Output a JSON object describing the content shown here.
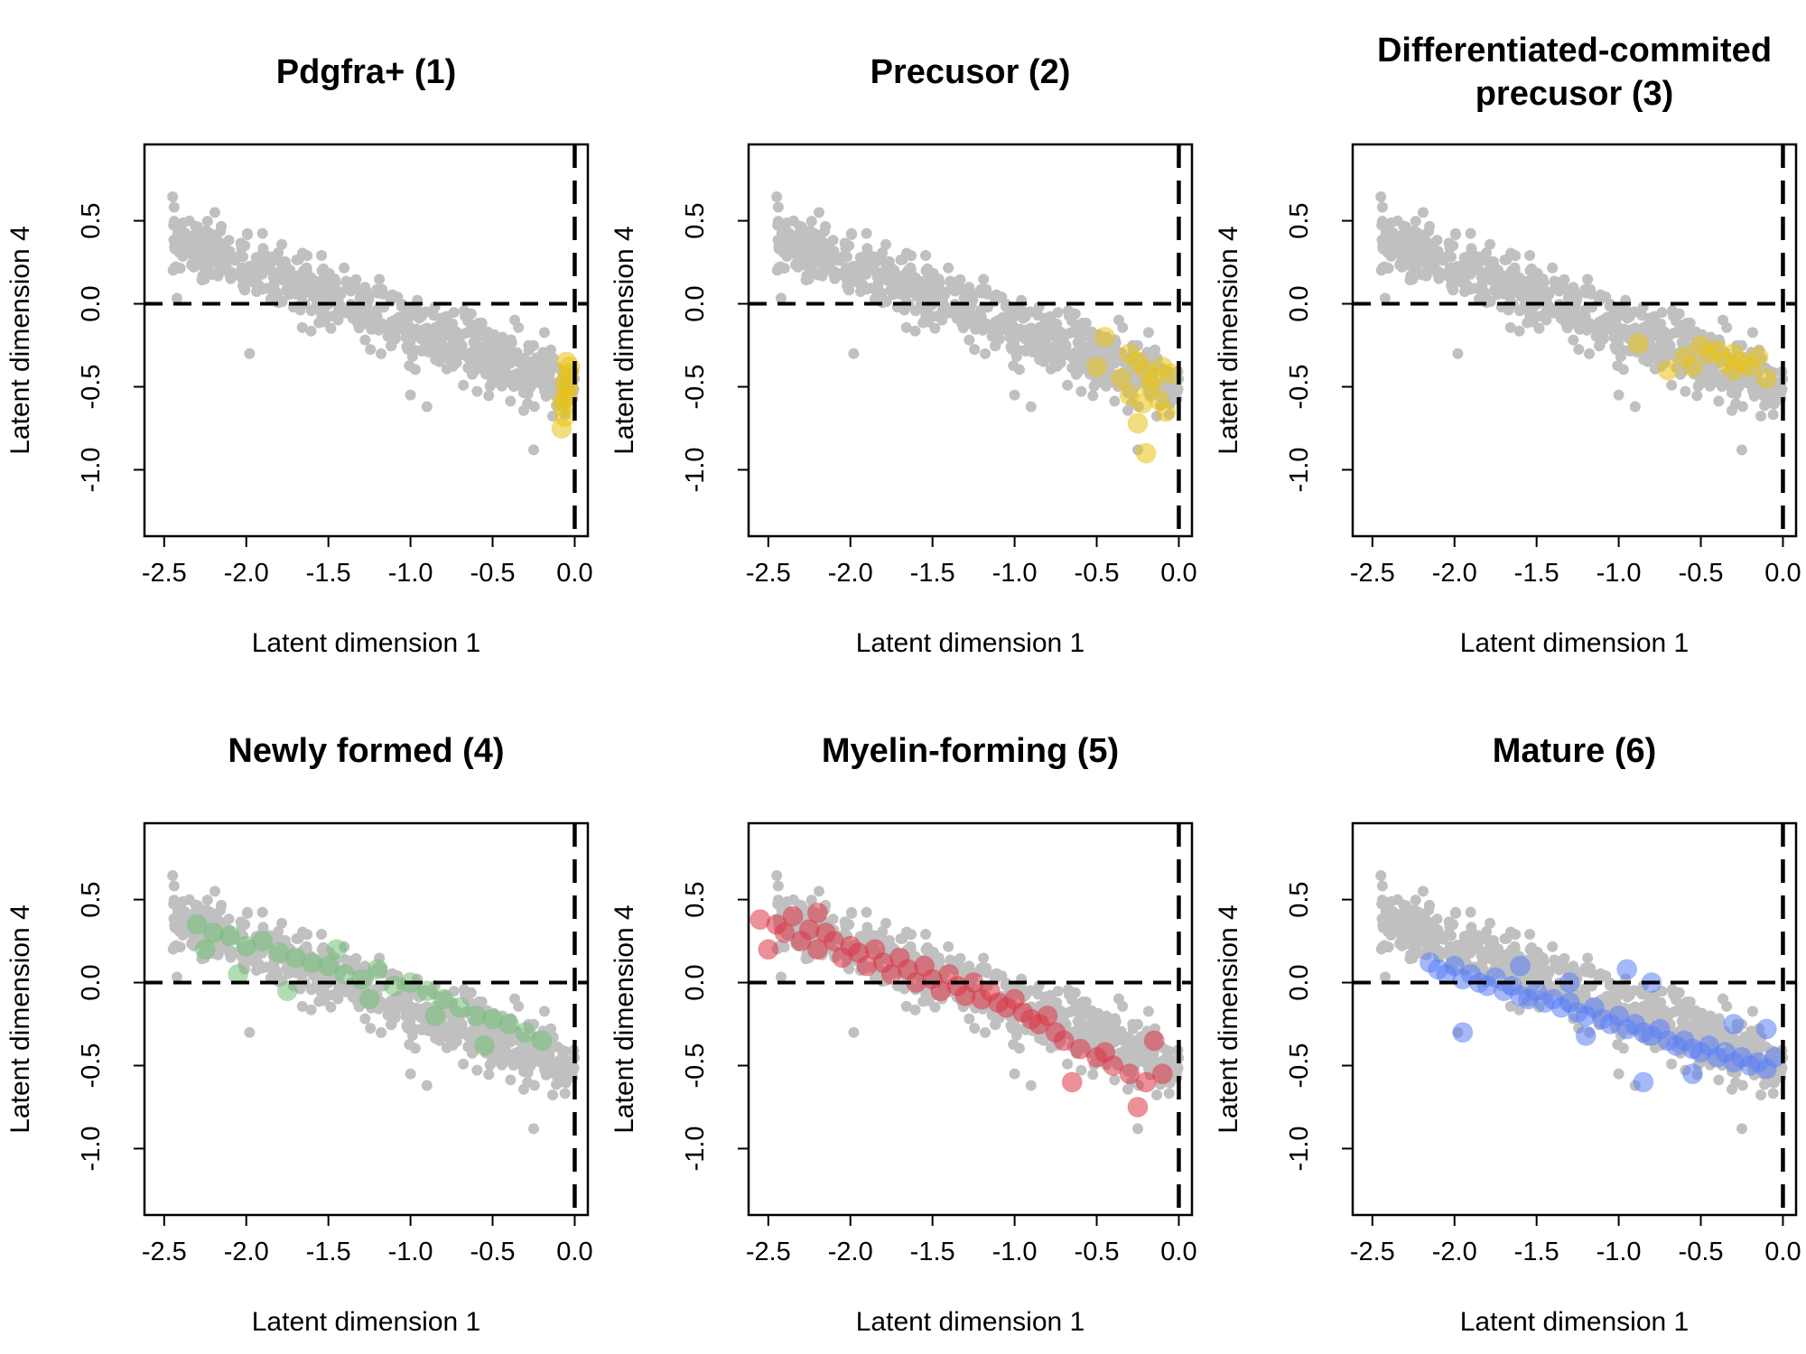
{
  "figure": {
    "colors": {
      "background_points": "#c0c0c0",
      "reference_lines": "#000000"
    },
    "reference_lines": {
      "x": 0.0,
      "y": 0.0,
      "style": "dashed"
    }
  },
  "chart_data": [
    {
      "type": "scatter",
      "title": [
        "Pdgfra+ (1)"
      ],
      "xlabel": "Latent dimension 1",
      "ylabel": "Latent dimension 4",
      "xlim": [
        -2.62,
        0.08
      ],
      "ylim": [
        -1.4,
        0.96
      ],
      "xticks": [
        "-2.5",
        "-2.0",
        "-1.5",
        "-1.0",
        "-0.5",
        "0.0"
      ],
      "yticks": [
        "-1.0",
        "-0.5",
        "0.0",
        "0.5"
      ],
      "highlight_color": "#e8c215",
      "highlight_points": [
        [
          -0.05,
          -0.35
        ],
        [
          -0.04,
          -0.42
        ],
        [
          -0.06,
          -0.48
        ],
        [
          -0.05,
          -0.55
        ],
        [
          -0.07,
          -0.62
        ],
        [
          -0.06,
          -0.68
        ],
        [
          -0.08,
          -0.75
        ],
        [
          -0.04,
          -0.5
        ],
        [
          -0.03,
          -0.38
        ],
        [
          -0.07,
          -0.58
        ]
      ]
    },
    {
      "type": "scatter",
      "title": [
        "Precusor (2)"
      ],
      "xlabel": "Latent dimension 1",
      "ylabel": "Latent dimension 4",
      "xlim": [
        -2.62,
        0.08
      ],
      "ylim": [
        -1.4,
        0.96
      ],
      "xticks": [
        "-2.5",
        "-2.0",
        "-1.5",
        "-1.0",
        "-0.5",
        "0.0"
      ],
      "yticks": [
        "-1.0",
        "-0.5",
        "0.0",
        "0.5"
      ],
      "highlight_color": "#e8c215",
      "highlight_points": [
        [
          -0.45,
          -0.2
        ],
        [
          -0.5,
          -0.38
        ],
        [
          -0.3,
          -0.3
        ],
        [
          -0.25,
          -0.35
        ],
        [
          -0.2,
          -0.4
        ],
        [
          -0.15,
          -0.45
        ],
        [
          -0.1,
          -0.38
        ],
        [
          -0.05,
          -0.42
        ],
        [
          -0.18,
          -0.5
        ],
        [
          -0.22,
          -0.6
        ],
        [
          -0.3,
          -0.55
        ],
        [
          -0.12,
          -0.58
        ],
        [
          -0.25,
          -0.72
        ],
        [
          -0.2,
          -0.9
        ],
        [
          -0.08,
          -0.65
        ],
        [
          -0.35,
          -0.45
        ]
      ]
    },
    {
      "type": "scatter",
      "title": [
        "Differentiated-commited",
        "precusor (3)"
      ],
      "xlabel": "Latent dimension 1",
      "ylabel": "Latent dimension 4",
      "xlim": [
        -2.62,
        0.08
      ],
      "ylim": [
        -1.4,
        0.96
      ],
      "xticks": [
        "-2.5",
        "-2.0",
        "-1.5",
        "-1.0",
        "-0.5",
        "0.0"
      ],
      "yticks": [
        "-1.0",
        "-0.5",
        "0.0",
        "0.5"
      ],
      "highlight_color": "#e8c215",
      "highlight_points": [
        [
          -0.88,
          -0.24
        ],
        [
          -0.7,
          -0.4
        ],
        [
          -0.6,
          -0.32
        ],
        [
          -0.5,
          -0.25
        ],
        [
          -0.45,
          -0.3
        ],
        [
          -0.4,
          -0.28
        ],
        [
          -0.35,
          -0.35
        ],
        [
          -0.3,
          -0.4
        ],
        [
          -0.25,
          -0.35
        ],
        [
          -0.2,
          -0.38
        ],
        [
          -0.15,
          -0.32
        ],
        [
          -0.1,
          -0.45
        ],
        [
          -0.55,
          -0.38
        ],
        [
          -0.3,
          -0.3
        ]
      ]
    },
    {
      "type": "scatter",
      "title": [
        "Newly formed (4)"
      ],
      "xlabel": "Latent dimension 1",
      "ylabel": "Latent dimension 4",
      "xlim": [
        -2.62,
        0.08
      ],
      "ylim": [
        -1.4,
        0.96
      ],
      "xticks": [
        "-2.5",
        "-2.0",
        "-1.5",
        "-1.0",
        "-0.5",
        "0.0"
      ],
      "yticks": [
        "-1.0",
        "-0.5",
        "0.0",
        "0.5"
      ],
      "highlight_color": "#72bf74",
      "highlight_points": [
        [
          -2.3,
          0.35
        ],
        [
          -2.2,
          0.3
        ],
        [
          -2.1,
          0.28
        ],
        [
          -2.0,
          0.22
        ],
        [
          -1.9,
          0.25
        ],
        [
          -1.8,
          0.18
        ],
        [
          -1.7,
          0.15
        ],
        [
          -1.6,
          0.12
        ],
        [
          -1.5,
          0.1
        ],
        [
          -1.4,
          0.05
        ],
        [
          -1.3,
          0.02
        ],
        [
          -1.2,
          0.08
        ],
        [
          -1.1,
          -0.02
        ],
        [
          -1.0,
          0.0
        ],
        [
          -0.9,
          -0.05
        ],
        [
          -0.8,
          -0.1
        ],
        [
          -0.7,
          -0.15
        ],
        [
          -0.6,
          -0.2
        ],
        [
          -0.5,
          -0.22
        ],
        [
          -0.4,
          -0.25
        ],
        [
          -0.3,
          -0.3
        ],
        [
          -0.2,
          -0.35
        ],
        [
          -1.75,
          -0.05
        ],
        [
          -2.25,
          0.2
        ],
        [
          -1.45,
          0.2
        ],
        [
          -0.85,
          -0.2
        ],
        [
          -0.55,
          -0.38
        ],
        [
          -1.25,
          -0.1
        ],
        [
          -2.05,
          0.05
        ]
      ]
    },
    {
      "type": "scatter",
      "title": [
        "Myelin-forming (5)"
      ],
      "xlabel": "Latent dimension 1",
      "ylabel": "Latent dimension 4",
      "xlim": [
        -2.62,
        0.08
      ],
      "ylim": [
        -1.4,
        0.96
      ],
      "xticks": [
        "-2.5",
        "-2.0",
        "-1.5",
        "-1.0",
        "-0.5",
        "0.0"
      ],
      "yticks": [
        "-1.0",
        "-0.5",
        "0.0",
        "0.5"
      ],
      "highlight_color": "#dc3545",
      "highlight_points": [
        [
          -2.55,
          0.38
        ],
        [
          -2.45,
          0.35
        ],
        [
          -2.4,
          0.3
        ],
        [
          -2.35,
          0.4
        ],
        [
          -2.3,
          0.25
        ],
        [
          -2.25,
          0.32
        ],
        [
          -2.2,
          0.2
        ],
        [
          -2.15,
          0.3
        ],
        [
          -2.1,
          0.25
        ],
        [
          -2.05,
          0.15
        ],
        [
          -2.0,
          0.22
        ],
        [
          -1.95,
          0.18
        ],
        [
          -1.9,
          0.1
        ],
        [
          -1.85,
          0.2
        ],
        [
          -1.8,
          0.12
        ],
        [
          -1.75,
          0.05
        ],
        [
          -1.7,
          0.15
        ],
        [
          -1.65,
          0.08
        ],
        [
          -1.6,
          0.0
        ],
        [
          -1.55,
          0.1
        ],
        [
          -1.5,
          0.02
        ],
        [
          -1.45,
          -0.05
        ],
        [
          -1.4,
          0.05
        ],
        [
          -1.35,
          -0.02
        ],
        [
          -1.3,
          -0.08
        ],
        [
          -1.25,
          0.0
        ],
        [
          -1.2,
          -0.1
        ],
        [
          -1.15,
          -0.05
        ],
        [
          -1.1,
          -0.12
        ],
        [
          -1.05,
          -0.15
        ],
        [
          -1.0,
          -0.1
        ],
        [
          -0.95,
          -0.18
        ],
        [
          -0.9,
          -0.22
        ],
        [
          -0.85,
          -0.25
        ],
        [
          -0.8,
          -0.2
        ],
        [
          -0.75,
          -0.3
        ],
        [
          -0.7,
          -0.35
        ],
        [
          -0.6,
          -0.4
        ],
        [
          -0.5,
          -0.45
        ],
        [
          -0.4,
          -0.5
        ],
        [
          -0.3,
          -0.55
        ],
        [
          -0.2,
          -0.6
        ],
        [
          -0.15,
          -0.35
        ],
        [
          -0.1,
          -0.55
        ],
        [
          -0.25,
          -0.75
        ],
        [
          -0.65,
          -0.6
        ],
        [
          -0.45,
          -0.42
        ],
        [
          -2.5,
          0.2
        ],
        [
          -2.2,
          0.42
        ]
      ]
    },
    {
      "type": "scatter",
      "title": [
        "Mature (6)"
      ],
      "xlabel": "Latent dimension 1",
      "ylabel": "Latent dimension 4",
      "xlim": [
        -2.62,
        0.08
      ],
      "ylim": [
        -1.4,
        0.96
      ],
      "xticks": [
        "-2.5",
        "-2.0",
        "-1.5",
        "-1.0",
        "-0.5",
        "0.0"
      ],
      "yticks": [
        "-1.0",
        "-0.5",
        "0.0",
        "0.5"
      ],
      "highlight_color": "#5b7ff5",
      "highlight_points": [
        [
          -2.15,
          0.12
        ],
        [
          -2.1,
          0.08
        ],
        [
          -2.05,
          0.05
        ],
        [
          -2.0,
          0.1
        ],
        [
          -1.95,
          0.02
        ],
        [
          -1.9,
          0.05
        ],
        [
          -1.85,
          0.0
        ],
        [
          -1.8,
          -0.02
        ],
        [
          -1.75,
          0.03
        ],
        [
          -1.7,
          -0.05
        ],
        [
          -1.65,
          -0.02
        ],
        [
          -1.6,
          -0.08
        ],
        [
          -1.55,
          -0.1
        ],
        [
          -1.5,
          -0.05
        ],
        [
          -1.45,
          -0.12
        ],
        [
          -1.4,
          -0.1
        ],
        [
          -1.35,
          -0.15
        ],
        [
          -1.3,
          -0.12
        ],
        [
          -1.25,
          -0.18
        ],
        [
          -1.2,
          -0.2
        ],
        [
          -1.15,
          -0.15
        ],
        [
          -1.1,
          -0.22
        ],
        [
          -1.05,
          -0.25
        ],
        [
          -1.0,
          -0.2
        ],
        [
          -0.95,
          -0.28
        ],
        [
          -0.9,
          -0.25
        ],
        [
          -0.85,
          -0.3
        ],
        [
          -0.8,
          -0.32
        ],
        [
          -0.75,
          -0.28
        ],
        [
          -0.7,
          -0.35
        ],
        [
          -0.65,
          -0.38
        ],
        [
          -0.6,
          -0.35
        ],
        [
          -0.55,
          -0.4
        ],
        [
          -0.5,
          -0.42
        ],
        [
          -0.45,
          -0.38
        ],
        [
          -0.4,
          -0.45
        ],
        [
          -0.35,
          -0.42
        ],
        [
          -0.3,
          -0.48
        ],
        [
          -0.25,
          -0.45
        ],
        [
          -0.2,
          -0.5
        ],
        [
          -0.15,
          -0.48
        ],
        [
          -0.1,
          -0.52
        ],
        [
          -0.05,
          -0.45
        ],
        [
          -1.95,
          -0.3
        ],
        [
          -0.85,
          -0.6
        ],
        [
          -0.95,
          0.08
        ],
        [
          -0.8,
          0.0
        ],
        [
          -0.3,
          -0.25
        ],
        [
          -0.1,
          -0.28
        ],
        [
          -1.6,
          0.1
        ],
        [
          -1.3,
          0.0
        ],
        [
          -0.55,
          -0.55
        ],
        [
          -1.2,
          -0.32
        ]
      ]
    }
  ]
}
